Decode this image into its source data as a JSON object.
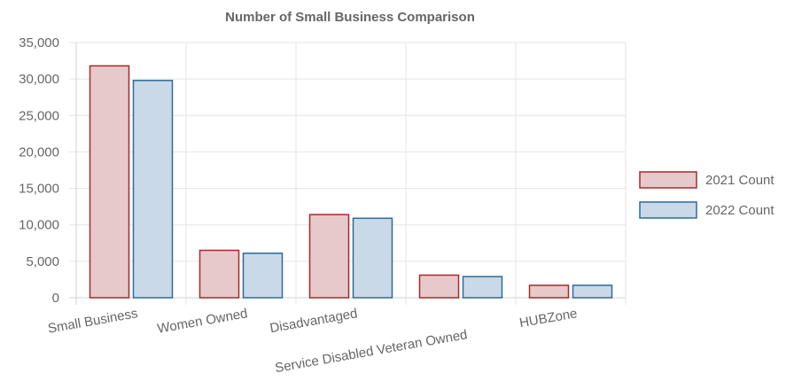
{
  "chart_data": {
    "type": "bar",
    "title": "Number of Small Business Comparison",
    "xlabel": "",
    "ylabel": "",
    "categories": [
      "Small Business",
      "Women Owned",
      "Disadvantaged",
      "Service Disabled Veteran Owned",
      "HUBZone"
    ],
    "series": [
      {
        "name": "2021 Count",
        "values": [
          31800,
          6500,
          11400,
          3100,
          1700
        ],
        "fill": "#e8c9cb",
        "stroke": "#a52a2a"
      },
      {
        "name": "2022 Count",
        "values": [
          29800,
          6100,
          10900,
          2900,
          1700
        ],
        "fill": "#c9d9e7",
        "stroke": "#2e6a9a"
      }
    ],
    "ylim": [
      0,
      35000
    ],
    "yticks": [
      0,
      5000,
      10000,
      15000,
      20000,
      25000,
      30000,
      35000
    ],
    "ytick_labels": [
      "0",
      "5,000",
      "10,000",
      "15,000",
      "20,000",
      "25,000",
      "30,000",
      "35,000"
    ],
    "grid": true,
    "legend_position": "right"
  }
}
